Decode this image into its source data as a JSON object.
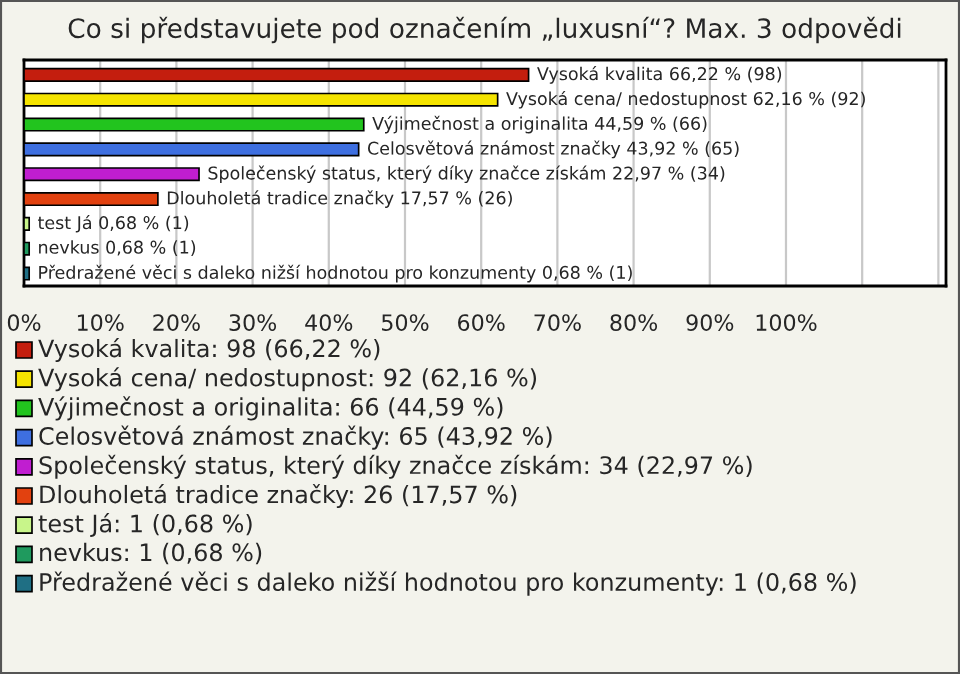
{
  "chart_data": {
    "type": "bar",
    "orientation": "horizontal",
    "title": "Co si představujete pod označením „luxusní“? Max. 3 odpovědi",
    "categories": [
      null,
      null,
      null,
      null,
      null,
      null,
      null,
      null,
      null
    ],
    "values": [
      66.22,
      62.16,
      44.59,
      43.92,
      22.97,
      17.57,
      0.68,
      0.68,
      0.68
    ],
    "colors": [
      "#c41e0e",
      "#f5e400",
      "#22c41e",
      "#3e6fe0",
      "#c01ed0",
      "#e2410f",
      "#c8f58a",
      "#1f9a5e",
      "#1f6f84"
    ],
    "value_labels": [
      "Vysoká kvalita 66,22 % (98)",
      "Vysoká cena/ nedostupnost 62,16 % (92)",
      "Výjimečnost a originalita 44,59 % (66)",
      "Celosvětová známost značky 43,92 % (65)",
      "Společenský status, který díky značce získám 22,97 % (34)",
      "Dlouholetá tradice značky 17,57 % (26)",
      "test Já 0,68 % (1)",
      "nevkus 0,68 % (1)",
      "Předražené věci s daleko nižší hodnotou pro konzumenty 0,68 % (1)"
    ],
    "annotations": [
      "Vysoká kvalita: 98 (66,22 %)",
      "Vysoká cena/ nedostupnost: 92 (62,16 %)",
      "Výjimečnost a originalita: 66 (44,59 %)",
      "Celosvětová známost značky: 65 (43,92 %)",
      "Společenský status, který díky značce získám: 34 (22,97 %)",
      "Dlouholetá tradice značky: 26 (17,57 %)",
      "test Já: 1 (0,68 %)",
      "nevkus: 1 (0,68 %)",
      "Předražené věci s daleko nižší hodnotou pro konzumenty: 1 (0,68 %)"
    ],
    "xlim": [
      0,
      121
    ],
    "xticks": [
      {
        "value": 0,
        "label": "0%"
      },
      {
        "value": 10,
        "label": "10%"
      },
      {
        "value": 20,
        "label": "20%"
      },
      {
        "value": 30,
        "label": "30%"
      },
      {
        "value": 40,
        "label": "40%"
      },
      {
        "value": 50,
        "label": "50%"
      },
      {
        "value": 60,
        "label": "60%"
      },
      {
        "value": 70,
        "label": "70%"
      },
      {
        "value": 80,
        "label": "80%"
      },
      {
        "value": 90,
        "label": "90%"
      },
      {
        "value": 100,
        "label": "100%"
      },
      {
        "value": 110,
        "label": null
      },
      {
        "value": 120,
        "label": null
      }
    ],
    "grid": "x",
    "tick_labels": "x"
  }
}
